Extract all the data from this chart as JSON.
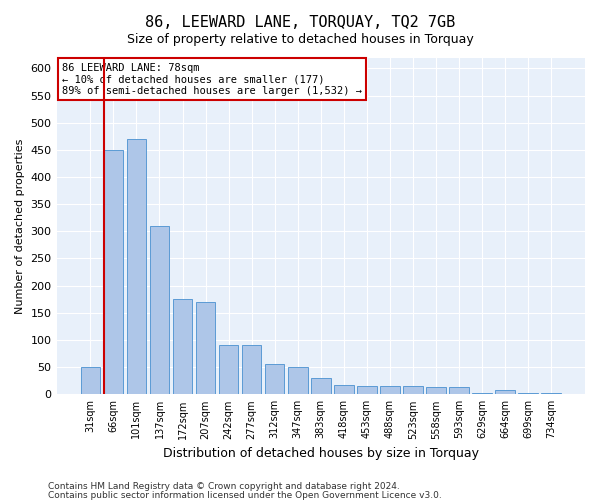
{
  "title": "86, LEEWARD LANE, TORQUAY, TQ2 7GB",
  "subtitle": "Size of property relative to detached houses in Torquay",
  "xlabel": "Distribution of detached houses by size in Torquay",
  "ylabel": "Number of detached properties",
  "categories": [
    "31sqm",
    "66sqm",
    "101sqm",
    "137sqm",
    "172sqm",
    "207sqm",
    "242sqm",
    "277sqm",
    "312sqm",
    "347sqm",
    "383sqm",
    "418sqm",
    "453sqm",
    "488sqm",
    "523sqm",
    "558sqm",
    "593sqm",
    "629sqm",
    "664sqm",
    "699sqm",
    "734sqm"
  ],
  "values": [
    50,
    450,
    470,
    310,
    175,
    170,
    90,
    90,
    55,
    50,
    30,
    18,
    16,
    15,
    15,
    13,
    13,
    3,
    8,
    3,
    3
  ],
  "bar_color": "#aec6e8",
  "bar_edge_color": "#5b9bd5",
  "vline_x_index": 1,
  "annotation_title": "86 LEEWARD LANE: 78sqm",
  "annotation_line1": "← 10% of detached houses are smaller (177)",
  "annotation_line2": "89% of semi-detached houses are larger (1,532) →",
  "ylim": [
    0,
    620
  ],
  "yticks": [
    0,
    50,
    100,
    150,
    200,
    250,
    300,
    350,
    400,
    450,
    500,
    550,
    600
  ],
  "vline_color": "#cc0000",
  "annotation_box_color": "#ffffff",
  "annotation_box_edge": "#cc0000",
  "bg_color": "#e8f0fa",
  "footer1": "Contains HM Land Registry data © Crown copyright and database right 2024.",
  "footer2": "Contains public sector information licensed under the Open Government Licence v3.0."
}
